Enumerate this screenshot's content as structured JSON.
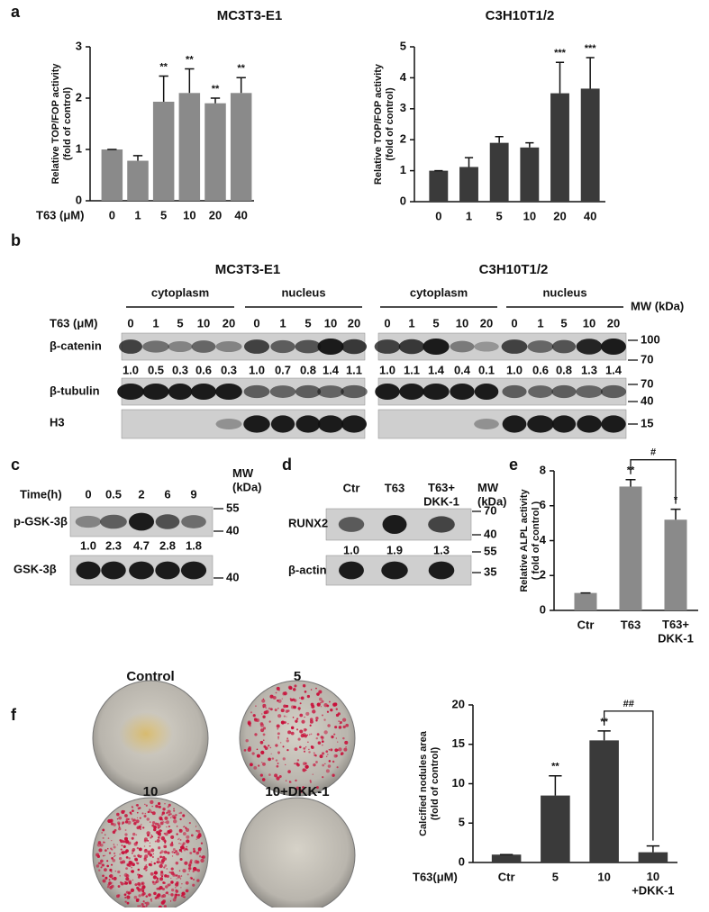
{
  "panel_labels": [
    "a",
    "b",
    "c",
    "d",
    "e",
    "f"
  ],
  "chart_data": [
    {
      "type": "bar",
      "title": "MC3T3-E1",
      "ylabel": "Relative TOP/FOP activity\n(fold of control)",
      "xlabel": "T63 (μM)",
      "categories": [
        "0",
        "1",
        "5",
        "10",
        "20",
        "40"
      ],
      "values": [
        1.0,
        0.78,
        1.93,
        2.1,
        1.9,
        2.1
      ],
      "errors": [
        0,
        0.1,
        0.5,
        0.47,
        0.1,
        0.3
      ],
      "stars": [
        null,
        null,
        "**",
        "**",
        "**",
        "**"
      ],
      "color": "#8a8a8a",
      "ylim": [
        0,
        3
      ],
      "yticks": [
        0,
        1,
        2,
        3
      ]
    },
    {
      "type": "bar",
      "title": "C3H10T1/2",
      "ylabel": "Relative TOP/FOP activity\n(fold of control)",
      "categories": [
        "0",
        "1",
        "5",
        "10",
        "20",
        "40"
      ],
      "values": [
        1.0,
        1.12,
        1.9,
        1.75,
        3.5,
        3.65
      ],
      "errors": [
        0,
        0.3,
        0.2,
        0.15,
        1.0,
        1.0
      ],
      "stars": [
        null,
        null,
        null,
        null,
        "***",
        "***"
      ],
      "color": "#3a3a3a",
      "ylim": [
        0,
        5
      ],
      "yticks": [
        0,
        1,
        2,
        3,
        4,
        5
      ]
    },
    {
      "type": "bar",
      "ylabel": "Relative ALPL activity\n( fold of control )",
      "categories": [
        "Ctr",
        "T63",
        "T63+\nDKK-1"
      ],
      "values": [
        1,
        7.1,
        5.2
      ],
      "errors": [
        0,
        0.4,
        0.6
      ],
      "stars": [
        null,
        "**",
        "*"
      ],
      "brackets": [
        {
          "categories": [
            "T63",
            "T63+\nDKK-1"
          ],
          "label": "#"
        }
      ],
      "color": "#8a8a8a",
      "ylim": [
        0,
        8
      ],
      "yticks": [
        0,
        2,
        4,
        6,
        8
      ]
    },
    {
      "type": "bar",
      "ylabel": "Calcified nodules area\n(fold of control)",
      "xlabel": "T63(μM)",
      "categories": [
        "Ctr",
        "5",
        "10",
        "10\n+DKK-1"
      ],
      "values": [
        1,
        8.5,
        15.5,
        1.3
      ],
      "errors": [
        0,
        2.5,
        1.2,
        0.8
      ],
      "stars": [
        null,
        "**",
        "**",
        null
      ],
      "brackets": [
        {
          "categories": [
            "10",
            "10\n+DKK-1"
          ],
          "label": "##"
        }
      ],
      "color": "#3a3a3a",
      "ylim": [
        0,
        20
      ],
      "yticks": [
        0,
        5,
        10,
        15,
        20
      ]
    }
  ],
  "panel_b": {
    "cell_lines": [
      "MC3T3-E1",
      "C3H10T1/2"
    ],
    "fractions": [
      "cytoplasm",
      "nucleus",
      "cytoplasm",
      "nucleus"
    ],
    "mw_header": "MW (kDa)",
    "lane_header": "T63 (μM)",
    "lanes": [
      "0",
      "1",
      "5",
      "10",
      "20",
      "0",
      "1",
      "5",
      "10",
      "20",
      "0",
      "1",
      "5",
      "10",
      "20",
      "0",
      "1",
      "5",
      "10",
      "20"
    ],
    "rows": [
      {
        "label": "β-catenin",
        "quant": [
          "1.0",
          "0.5",
          "0.3",
          "0.6",
          "0.3",
          "1.0",
          "0.7",
          "0.8",
          "1.4",
          "1.1",
          "1.0",
          "1.1",
          "1.4",
          "0.4",
          "0.1",
          "1.0",
          "0.6",
          "0.8",
          "1.3",
          "1.4"
        ]
      },
      {
        "label": "β-tubulin"
      },
      {
        "label": "H3"
      }
    ],
    "mw": [
      "100",
      "70",
      "70",
      "40",
      "15"
    ]
  },
  "panel_c": {
    "lane_header": "Time(h)",
    "lanes": [
      "0",
      "0.5",
      "2",
      "6",
      "9"
    ],
    "mw_header": "MW\n(kDa)",
    "rows": [
      {
        "label": "p-GSK-3β",
        "quant": [
          "1.0",
          "2.3",
          "4.7",
          "2.8",
          "1.8"
        ]
      },
      {
        "label": "GSK-3β"
      }
    ],
    "mw": [
      "55",
      "40",
      "40"
    ]
  },
  "panel_d": {
    "lanes": [
      "Ctr",
      "T63",
      "T63+\nDKK-1"
    ],
    "mw_header": "MW\n(kDa)",
    "rows": [
      {
        "label": "RUNX2",
        "quant": [
          "1.0",
          "1.9",
          "1.3"
        ]
      },
      {
        "label": "β-actin"
      }
    ],
    "mw": [
      "70",
      "40",
      "55",
      "35"
    ]
  },
  "panel_f": {
    "photos": [
      "Control",
      "5",
      "10",
      "10+DKK-1"
    ]
  }
}
